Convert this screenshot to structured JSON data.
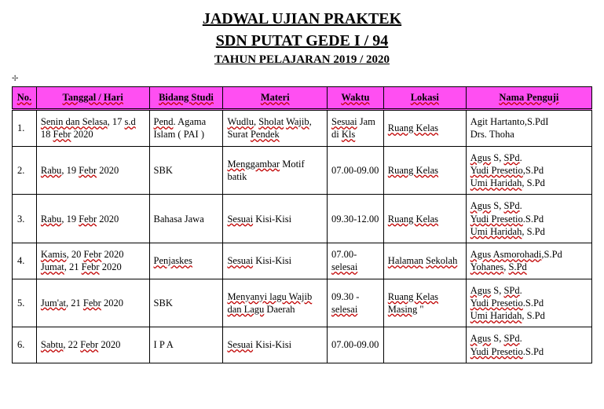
{
  "title": {
    "line1": "JADWAL UJIAN PRAKTEK",
    "line2": "SDN PUTAT GEDE I / 94",
    "line3": "TAHUN PELAJARAN 2019 / 2020"
  },
  "headers": {
    "no": "No.",
    "tanggal": "Tanggal / Hari",
    "bidang": "Bidang Studi",
    "materi": "Materi",
    "waktu": "Waktu",
    "lokasi": "Lokasi",
    "penguji": "Nama Penguji"
  },
  "rows": [
    {
      "no": "1.",
      "tanggal_html": "<span class='sq'>Senin dan Selasa</span>, 17 <span class='sq'>s.d</span> 18 <span class='sq'>Febr</span> 2020",
      "bidang_html": "<span class='sq'>Pend</span>. Agama Islam ( PAI )",
      "materi_html": "<span class='sq'>Wudlu</span>, <span class='sq'>Sholat</span> <span class='sq'>Wajib</span>, Surat <span class='sq'>Pendek</span>",
      "waktu_html": "<span class='sq'>Sesuai</span> Jam di <span class='sq'>Kls</span>",
      "lokasi_html": "<span class='sq'>Ruang Kelas</span>",
      "penguji_html": "<span class='penguji-line'>Agit Hartanto,S.PdI</span><span class='penguji-line'>Drs. Thoha</span>"
    },
    {
      "no": "2.",
      "tanggal_html": "<span class='sq'>Rabu</span>, 19  <span class='sq'>Febr</span> 2020",
      "bidang_html": "SBK",
      "materi_html": "<span class='sq'>Menggambar</span> Motif batik",
      "waktu_html": "07.00-09.00",
      "lokasi_html": "<span class='sq'>Ruang Kelas</span>",
      "penguji_html": "<span class='penguji-line'><span class='sq'>Agus</span> S, <span class='sq'>SPd</span>.</span><span class='penguji-line'><span class='sq'>Yudi Presetio</span>,S.Pd</span><span class='penguji-line'><span class='sq'>Umi Haridah</span>, S.Pd</span>"
    },
    {
      "no": "3.",
      "tanggal_html": "<span class='sq'>Rabu</span>, 19  <span class='sq'>Febr</span> 2020",
      "bidang_html": "Bahasa Jawa",
      "materi_html": "<span class='sq'>Sesuai</span> Kisi-Kisi",
      "waktu_html": "09.30-12.00",
      "lokasi_html": "<span class='sq'>Ruang Kelas</span>",
      "penguji_html": "<span class='penguji-line'><span class='sq'>Agus</span> S, <span class='sq'>SPd</span>.</span><span class='penguji-line'><span class='sq'>Yudi Presetio</span>.S.Pd</span><span class='penguji-line'><span class='sq'>Umi Haridah</span>, S.Pd</span>"
    },
    {
      "no": "4.",
      "tanggal_html": "<span class='sq'>Kamis</span>, 20 <span class='sq'>Febr</span> 2020<br><span class='sq'>Jumat</span>, 21 <span class='sq'>Febr</span> 2020",
      "bidang_html": "<span class='sq'>Penjaskes</span>",
      "materi_html": "<span class='sq'>Sesuai</span> Kisi-Kisi",
      "waktu_html": "07.00-<span class='sq'>selesai</span>",
      "lokasi_html": "<span class='sq'>Halaman</span> <span class='sq'>Sekolah</span>",
      "penguji_html": "<span class='penguji-line'><span class='sq'>Agus Asmorohadi</span>,S.Pd</span><span class='penguji-line'><span class='sq'>Yohanes</span>, <span class='sq'>S.Pd</span></span>"
    },
    {
      "no": "5.",
      "tanggal_html": "<span class='sq'>Jum'at</span>, 21 <span class='sq'>Febr</span> 2020",
      "bidang_html": "SBK",
      "materi_html": "<span class='sq'>Menyanyi lagu Wajib</span> <span class='sq'>dan Lagu</span> Daerah",
      "waktu_html": "09.30 - <span class='sq'>selesai</span>",
      "lokasi_html": "<span class='sq'>Ruang Kelas</span> <span class='sq'>Masing</span> \"",
      "penguji_html": "<span class='penguji-line'><span class='sq'>Agus</span> S, <span class='sq'>SPd</span>.</span><span class='penguji-line'><span class='sq'>Yudi Presetio</span>.S.Pd</span><span class='penguji-line'><span class='sq'>Umi Haridah</span>, S.Pd</span>"
    },
    {
      "no": "6.",
      "tanggal_html": "<span class='sq'>Sabtu</span>, 22 <span class='sq'>Febr</span> 2020",
      "bidang_html": "I P A",
      "materi_html": "<span class='sq'>Sesuai</span> Kisi-Kisi",
      "waktu_html": "07.00-09.00",
      "lokasi_html": "",
      "penguji_html": "<span class='penguji-line'><span class='sq'>Agus</span> S, <span class='sq'>SPd</span>.</span><span class='penguji-line'><span class='sq'>Yudi Presetio</span>.S.Pd</span>"
    }
  ]
}
